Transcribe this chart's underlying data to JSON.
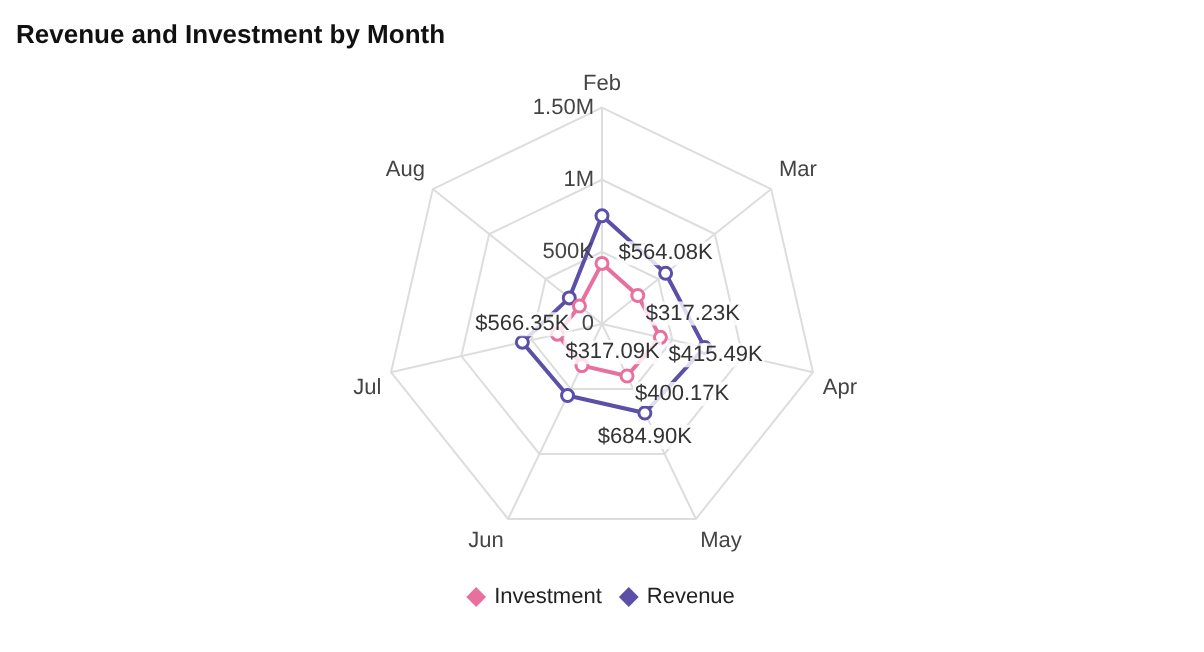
{
  "chart_data": {
    "type": "radar",
    "title": "Revenue and Investment by Month",
    "categories": [
      "Feb",
      "Mar",
      "Apr",
      "May",
      "Jun",
      "Jul",
      "Aug"
    ],
    "series": [
      {
        "name": "Investment",
        "color": "#e8709f",
        "values": [
          420000,
          317230,
          415490,
          400170,
          320000,
          317090,
          200000
        ],
        "value_labels": [
          null,
          "$317.23K",
          "$415.49K",
          "$400.17K",
          null,
          "$317.09K",
          null
        ]
      },
      {
        "name": "Revenue",
        "color": "#5b4fa8",
        "values": [
          750000,
          564080,
          730000,
          684900,
          550000,
          566350,
          290000
        ],
        "value_labels": [
          null,
          "$564.08K",
          null,
          "$684.90K",
          null,
          "$566.35K",
          null
        ]
      }
    ],
    "ylim": [
      0,
      1500000
    ],
    "yticks": [
      {
        "value": 0,
        "label": "0"
      },
      {
        "value": 500000,
        "label": "500K"
      },
      {
        "value": 1000000,
        "label": "1M"
      },
      {
        "value": 1500000,
        "label": "1.50M"
      }
    ],
    "grid": true,
    "legend": "bottom",
    "marker": "circle"
  }
}
